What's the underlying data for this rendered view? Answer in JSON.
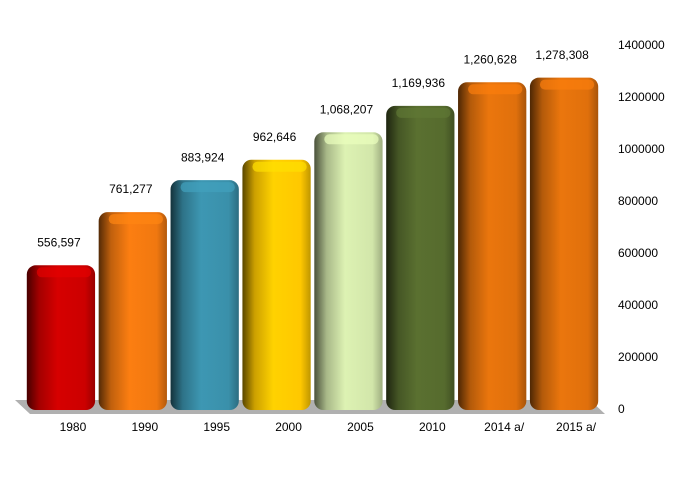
{
  "chart_data": {
    "type": "bar",
    "categories": [
      "1980",
      "1990",
      "1995",
      "2000",
      "2005",
      "2010",
      "2014 a/",
      "2015 a/"
    ],
    "values": [
      556597,
      761277,
      883924,
      962646,
      1068207,
      1169936,
      1260628,
      1278308
    ],
    "value_labels": [
      "556,597",
      "761,277",
      "883,924",
      "962,646",
      "1,068,207",
      "1,169,936",
      "1,260,628",
      "1,278,308"
    ],
    "colors": [
      "#cc0000",
      "#f07810",
      "#3a90aa",
      "#ffc800",
      "#d2e6aa",
      "#566b2e",
      "#e0700c",
      "#e0700c"
    ],
    "ylim": [
      0,
      1400000
    ],
    "yticks": [
      0,
      200000,
      400000,
      600000,
      800000,
      1000000,
      1200000,
      1400000
    ],
    "y_axis_side": "right",
    "grid": false
  }
}
